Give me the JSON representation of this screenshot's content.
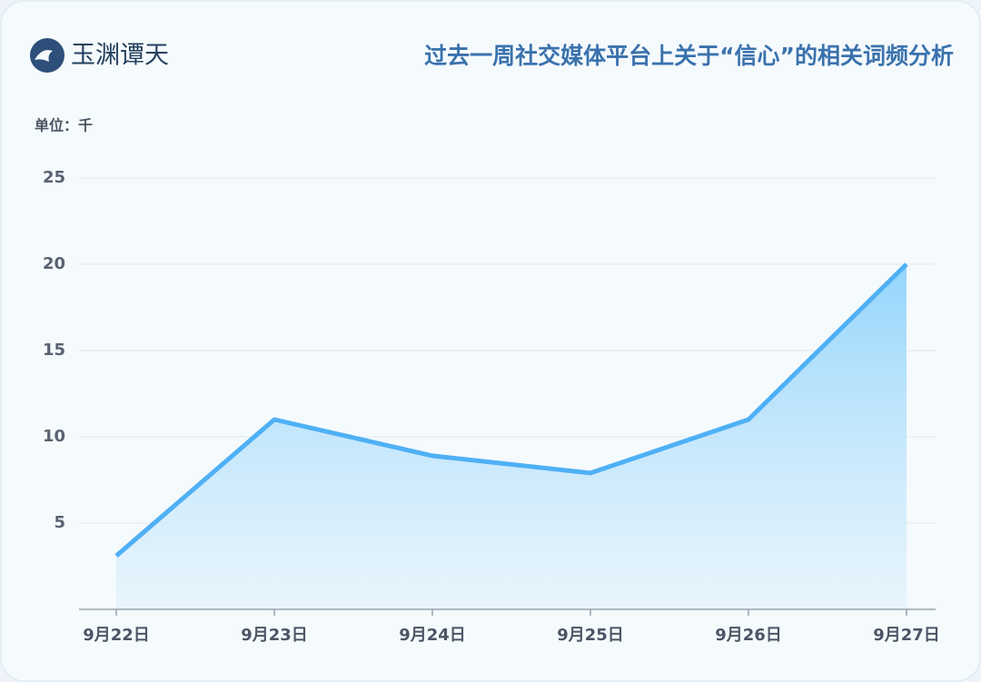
{
  "logo": {
    "text": "玉渊谭天"
  },
  "chart_data": {
    "type": "area",
    "title": "过去一周社交媒体平台上关于“信心”的相关词频分析",
    "unit_label": "单位：千",
    "categories": [
      "9月22日",
      "9月23日",
      "9月24日",
      "9月25日",
      "9月26日",
      "9月27日"
    ],
    "values": [
      3.1,
      11,
      8.9,
      7.9,
      11,
      20
    ],
    "color": "#4fb0f5",
    "ylim": [
      0,
      25
    ],
    "yticks": [
      5,
      10,
      15,
      20,
      25
    ],
    "grid": true
  }
}
